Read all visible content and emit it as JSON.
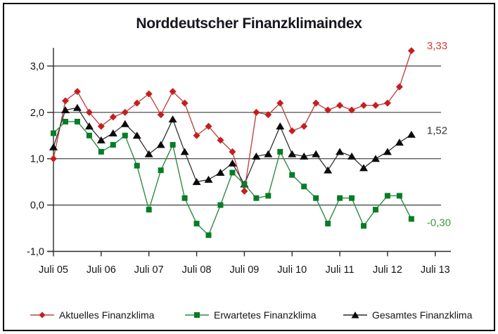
{
  "title": "Norddeutscher Finanzklimaindex",
  "chart_data": {
    "type": "line",
    "title": "Norddeutscher Finanzklimaindex",
    "grid": "horizontal",
    "legend_position": "bottom",
    "x_axis": {
      "tick_labels": [
        "Juli 05",
        "Juli 06",
        "Juli 07",
        "Juli 08",
        "Juli 09",
        "Juli 10",
        "Juli 11",
        "Juli 12",
        "Juli 13"
      ],
      "points_per_year": 4,
      "data_start": "Juli 05",
      "data_points": 31
    },
    "y_axis": {
      "tick_labels": [
        "3,0",
        "2,0",
        "1,0",
        "0,0",
        "-1,0"
      ],
      "tick_values": [
        3,
        2,
        1,
        0,
        -1
      ],
      "range": [
        -1,
        3.4
      ]
    },
    "series": [
      {
        "name": "Aktuelles Finanzklima",
        "marker": "diamond",
        "color": "#c41f1f",
        "line_color": "#c24444",
        "label_color": "#d93a32",
        "end_label": "3,33",
        "values": [
          1.0,
          2.25,
          2.45,
          2.0,
          1.7,
          1.9,
          2.0,
          2.2,
          2.4,
          1.95,
          2.45,
          2.2,
          1.5,
          1.7,
          1.4,
          1.15,
          0.3,
          2.0,
          1.95,
          2.2,
          1.6,
          1.7,
          2.2,
          2.05,
          2.15,
          2.05,
          2.15,
          2.15,
          2.2,
          2.55,
          3.33
        ]
      },
      {
        "name": "Erwartetes Finanzklima",
        "marker": "square",
        "color": "#067d26",
        "line_color": "#2f8a44",
        "label_color": "#3f9b3f",
        "end_label": "-0,30",
        "values": [
          1.55,
          1.8,
          1.8,
          1.5,
          1.15,
          1.3,
          1.5,
          0.85,
          -0.1,
          0.75,
          1.3,
          0.15,
          -0.4,
          -0.65,
          0.0,
          0.7,
          0.45,
          0.15,
          0.2,
          1.15,
          0.65,
          0.4,
          0.15,
          -0.4,
          0.15,
          0.15,
          -0.45,
          -0.1,
          0.2,
          0.2,
          -0.3
        ]
      },
      {
        "name": "Gesamtes Finanzklima",
        "marker": "triangle",
        "color": "#0a0a0a",
        "line_color": "#2a2a2a",
        "label_color": "#333333",
        "end_label": "1,52",
        "values": [
          1.25,
          2.05,
          2.1,
          1.7,
          1.4,
          1.55,
          1.75,
          1.5,
          1.1,
          1.3,
          1.85,
          1.15,
          0.5,
          0.55,
          0.7,
          0.9,
          0.45,
          1.05,
          1.1,
          1.7,
          1.1,
          1.05,
          1.1,
          0.75,
          1.15,
          1.05,
          0.8,
          1.0,
          1.15,
          1.35,
          1.52
        ]
      }
    ]
  },
  "legend": {
    "items": [
      {
        "label": "Aktuelles Finanzklima"
      },
      {
        "label": "Erwartetes Finanzklima"
      },
      {
        "label": "Gesamtes Finanzklima"
      }
    ]
  }
}
